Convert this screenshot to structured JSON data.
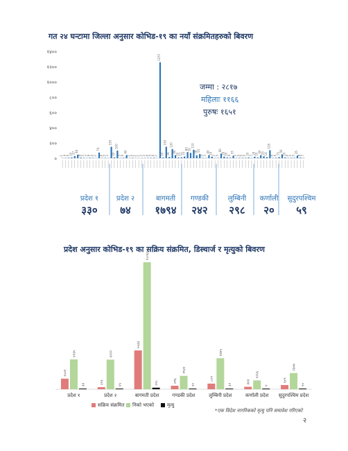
{
  "chart_data": [
    {
      "type": "bar",
      "title": "गत २४ घन्टामा जिल्ला अनुसार कोभिड-१९ का नयाँ संक्रमितहरुको बिवरण",
      "yticks": [
        "०",
        "२००",
        "४००",
        "६००",
        "८००",
        "१०००",
        "१२००",
        "१४००"
      ],
      "ylim": [
        0,
        1400
      ],
      "values": [
        2,
        4,
        6,
        10,
        27,
        46,
        8,
        5,
        3,
        6,
        4,
        2,
        74,
        4,
        5,
        3,
        150,
        10,
        100,
        3,
        6,
        40,
        2,
        5,
        2,
        2,
        3,
        3,
        4,
        5,
        6,
        2,
        1257,
        10,
        150,
        16,
        120,
        40,
        10,
        12,
        22,
        80,
        70,
        110,
        38,
        55,
        5,
        3,
        40,
        20,
        3,
        5,
        60,
        20,
        10,
        6,
        33,
        3,
        5,
        5,
        5,
        10,
        3,
        20,
        10,
        40,
        25,
        14,
        105,
        4,
        6,
        15,
        50,
        10,
        4,
        5,
        5,
        35,
        8,
        3
      ],
      "summary": {
        "total": "जम्मा : २८१७",
        "female": "महिलाः ११६६",
        "male": "पुरुषः १६५१"
      },
      "provinces": [
        {
          "name": "प्रदेश १",
          "value": "३३०"
        },
        {
          "name": "प्रदेश २",
          "value": "७४"
        },
        {
          "name": "बागमती",
          "value": "१७९४"
        },
        {
          "name": "गण्डकी",
          "value": "२४२"
        },
        {
          "name": "लुम्बिनी",
          "value": "२९८"
        },
        {
          "name": "कर्णाली",
          "value": "२०"
        },
        {
          "name": "सुदुरपश्चिम",
          "value": "५९"
        }
      ]
    },
    {
      "type": "bar",
      "title": "प्रदेश अनुसार कोभिड-१९ का सक्रिय संक्रमित, डिस्चार्ज र मृत्युको बिवरण",
      "categories": [
        "प्रदेश १",
        "प्रदेश २",
        "बागमती प्रदेश",
        "गण्डकी प्रदेश",
        "लुम्बिनी प्रदेश",
        "कर्णाली प्रदेश",
        "सुदुरपश्चिम प्रदेश"
      ],
      "ylim": [
        0,
        18000
      ],
      "series": [
        {
          "name": "सक्रिय संक्रमित",
          "color": "#e07b7b",
          "values": [
            1500,
            300,
            5500,
            500,
            800,
            350,
            600
          ],
          "labels": [
            "१५०९",
            "२९१",
            "५५३३",
            "४९६",
            "८०९",
            "३४३",
            "६०९"
          ]
        },
        {
          "name": "निको भएको",
          "color": "#b3d69a",
          "values": [
            4230,
            4200,
            18000,
            1900,
            4400,
            1250,
            2300
          ],
          "labels": [
            "४२३५",
            "४२२२",
            "१८०६२",
            "१९३१",
            "४४४५",
            "१२५६",
            "२३०७"
          ]
        },
        {
          "name": "मृत्यु",
          "color": "#111111",
          "values": [
            30,
            40,
            220,
            10,
            30,
            5,
            10
          ],
          "labels": [
            "३४",
            "४५",
            "२२८",
            "१०",
            "३२",
            "४",
            "१०"
          ]
        }
      ]
    }
  ],
  "footnote": "*एक विदेश नागरिकको मृत्यु पनि समावेश गरिएको",
  "page_number": "२"
}
